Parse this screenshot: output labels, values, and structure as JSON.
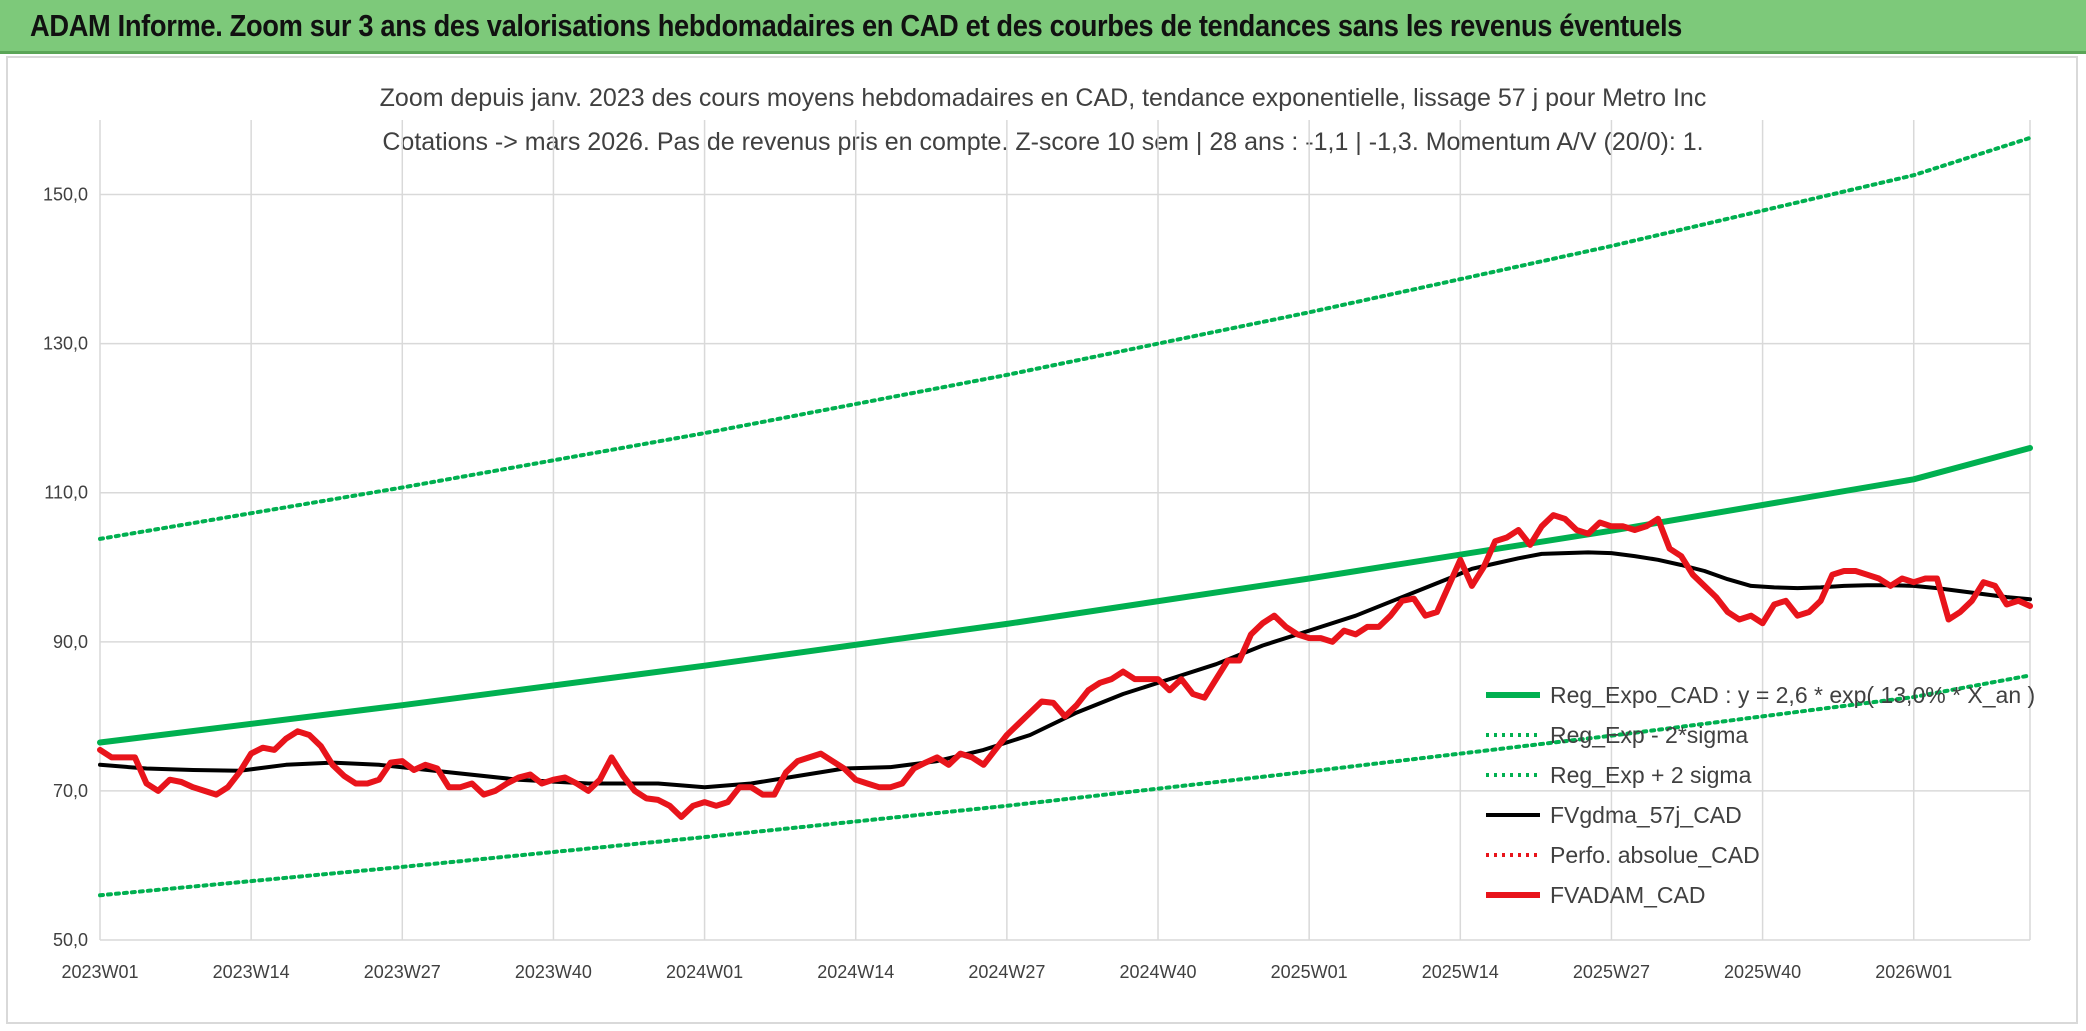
{
  "banner": {
    "title": "ADAM Informe. Zoom sur 3 ans des valorisations hebdomadaires en CAD et des courbes de tendances sans les revenus éventuels"
  },
  "chart_data": {
    "type": "line",
    "title_line1": "Zoom depuis janv. 2023 des cours moyens hebdomadaires en CAD, tendance exponentielle, lissage 57 j pour Metro Inc",
    "title_line2": "Cotations -> mars 2026. Pas de revenus pris en compte. Z-score 10 sem | 28 ans : -1,1 | -1,3. Momentum A/V (20/0): 1.",
    "ylim": [
      50,
      160
    ],
    "yticks": [
      "50,0",
      "70,0",
      "90,0",
      "110,0",
      "130,0",
      "150,0"
    ],
    "ytick_values": [
      50,
      70,
      90,
      110,
      130,
      150
    ],
    "grid": true,
    "legend_position": "bottom-right",
    "x_categories": [
      "2023W01",
      "2023W14",
      "2023W27",
      "2023W40",
      "2024W01",
      "2024W14",
      "2024W27",
      "2024W40",
      "2025W01",
      "2025W14",
      "2025W27",
      "2025W40",
      "2026W01"
    ],
    "x_total_weeks": 166,
    "series": [
      {
        "name": "Reg_Expo_CAD : y = 2,6 * exp( 13,0% * X_an )",
        "color": "#00b050",
        "style": "solid-thick",
        "x": [
          0,
          26,
          52,
          78,
          104,
          130,
          156,
          166
        ],
        "values": [
          76.5,
          81.5,
          86.8,
          92.4,
          98.5,
          104.9,
          111.8,
          116.0
        ]
      },
      {
        "name": "Reg_Exp - 2*sigma",
        "color": "#00b050",
        "style": "dotted",
        "x": [
          0,
          26,
          52,
          78,
          104,
          130,
          156,
          166
        ],
        "values": [
          56.0,
          59.8,
          63.8,
          68.0,
          72.6,
          77.4,
          82.6,
          85.5
        ]
      },
      {
        "name": "Reg_Exp + 2 sigma",
        "color": "#00b050",
        "style": "dotted",
        "x": [
          0,
          26,
          52,
          78,
          104,
          130,
          156,
          166
        ],
        "values": [
          103.8,
          110.7,
          118.0,
          125.8,
          134.2,
          143.1,
          152.6,
          157.6
        ]
      },
      {
        "name": "FVgdma_57j_CAD",
        "color": "#000000",
        "style": "solid",
        "x": [
          0,
          4,
          8,
          12,
          16,
          20,
          24,
          30,
          36,
          42,
          48,
          52,
          56,
          60,
          64,
          68,
          72,
          76,
          80,
          84,
          88,
          92,
          96,
          100,
          104,
          108,
          112,
          116,
          118,
          120,
          122,
          124,
          126,
          128,
          130,
          132,
          134,
          136,
          138,
          140,
          142,
          144,
          146,
          148,
          150,
          152,
          154,
          156,
          158,
          160,
          162,
          164,
          166
        ],
        "values": [
          73.5,
          73.0,
          72.8,
          72.7,
          73.5,
          73.8,
          73.5,
          72.5,
          71.5,
          71.0,
          71.0,
          70.5,
          71.0,
          72.0,
          73.0,
          73.2,
          74.0,
          75.5,
          77.5,
          80.5,
          83.0,
          85.0,
          87.0,
          89.5,
          91.5,
          93.5,
          96.0,
          98.5,
          99.8,
          100.5,
          101.2,
          101.8,
          101.9,
          102.0,
          101.9,
          101.5,
          101.0,
          100.3,
          99.5,
          98.4,
          97.5,
          97.3,
          97.2,
          97.3,
          97.5,
          97.6,
          97.6,
          97.5,
          97.2,
          96.8,
          96.4,
          96.0,
          95.7
        ]
      },
      {
        "name": "Perfo. absolue_CAD",
        "color": "#e8141b",
        "style": "dotted",
        "x": [],
        "values": []
      },
      {
        "name": "FVADAM_CAD",
        "color": "#e8141b",
        "style": "solid-thick",
        "x": [
          0,
          1,
          2,
          3,
          4,
          5,
          6,
          7,
          8,
          9,
          10,
          11,
          12,
          13,
          14,
          15,
          16,
          17,
          18,
          19,
          20,
          21,
          22,
          23,
          24,
          25,
          26,
          27,
          28,
          29,
          30,
          31,
          32,
          33,
          34,
          35,
          36,
          37,
          38,
          39,
          40,
          41,
          42,
          43,
          44,
          45,
          46,
          47,
          48,
          49,
          50,
          51,
          52,
          53,
          54,
          55,
          56,
          57,
          58,
          59,
          60,
          61,
          62,
          63,
          64,
          65,
          66,
          67,
          68,
          69,
          70,
          71,
          72,
          73,
          74,
          75,
          76,
          77,
          78,
          79,
          80,
          81,
          82,
          83,
          84,
          85,
          86,
          87,
          88,
          89,
          90,
          91,
          92,
          93,
          94,
          95,
          96,
          97,
          98,
          99,
          100,
          101,
          102,
          103,
          104,
          105,
          106,
          107,
          108,
          109,
          110,
          111,
          112,
          113,
          114,
          115,
          116,
          117,
          118,
          119,
          120,
          121,
          122,
          123,
          124,
          125,
          126,
          127,
          128,
          129,
          130,
          131,
          132,
          133,
          134,
          135,
          136,
          137,
          138,
          139,
          140,
          141,
          142,
          143,
          144,
          145,
          146,
          147,
          148,
          149,
          150,
          151,
          152,
          153,
          154,
          155,
          156,
          157,
          158,
          159,
          160,
          161,
          162,
          163,
          164,
          165,
          166
        ],
        "values": [
          75.5,
          74.5,
          74.5,
          74.5,
          71.0,
          70.0,
          71.5,
          71.2,
          70.5,
          70.0,
          69.5,
          70.5,
          72.5,
          75.0,
          75.8,
          75.5,
          77.0,
          78.0,
          77.5,
          76.0,
          73.5,
          72.0,
          71.0,
          71.0,
          71.5,
          73.8,
          74.0,
          72.8,
          73.5,
          73.0,
          70.5,
          70.5,
          71.0,
          69.5,
          70.0,
          71.0,
          71.8,
          72.2,
          71.0,
          71.5,
          71.8,
          71.0,
          70.0,
          71.5,
          74.5,
          72.0,
          70.0,
          69.0,
          68.8,
          68.0,
          66.5,
          68.0,
          68.5,
          68.0,
          68.5,
          70.5,
          70.5,
          69.5,
          69.5,
          72.5,
          74.0,
          74.5,
          75.0,
          74.0,
          73.0,
          71.5,
          71.0,
          70.5,
          70.5,
          71.0,
          73.0,
          73.8,
          74.5,
          73.5,
          75.0,
          74.5,
          73.5,
          75.5,
          77.5,
          79.0,
          80.5,
          82.0,
          81.8,
          80.0,
          81.5,
          83.5,
          84.5,
          85.0,
          86.0,
          85.0,
          85.0,
          85.0,
          83.5,
          85.0,
          83.0,
          82.5,
          85.0,
          87.5,
          87.5,
          91.0,
          92.5,
          93.5,
          92.0,
          91.0,
          90.5,
          90.5,
          90.0,
          91.5,
          91.0,
          92.0,
          92.0,
          93.5,
          95.5,
          95.8,
          93.5,
          94.0,
          97.5,
          101.0,
          97.5,
          100.0,
          103.5,
          104.0,
          105.0,
          103.0,
          105.5,
          107.0,
          106.5,
          105.0,
          104.5,
          106.0,
          105.5,
          105.5,
          105.0,
          105.5,
          106.5,
          102.5,
          101.5,
          99.0,
          97.5,
          96.0,
          94.0,
          93.0,
          93.5,
          92.5,
          95.0,
          95.5,
          93.5,
          94.0,
          95.5,
          99.0,
          99.5,
          99.5,
          99.0,
          98.5,
          97.5,
          98.5,
          98.0,
          98.5,
          98.5,
          93.0,
          94.0,
          95.5,
          98.0,
          97.5,
          95.0,
          95.5,
          94.8
        ]
      }
    ]
  }
}
